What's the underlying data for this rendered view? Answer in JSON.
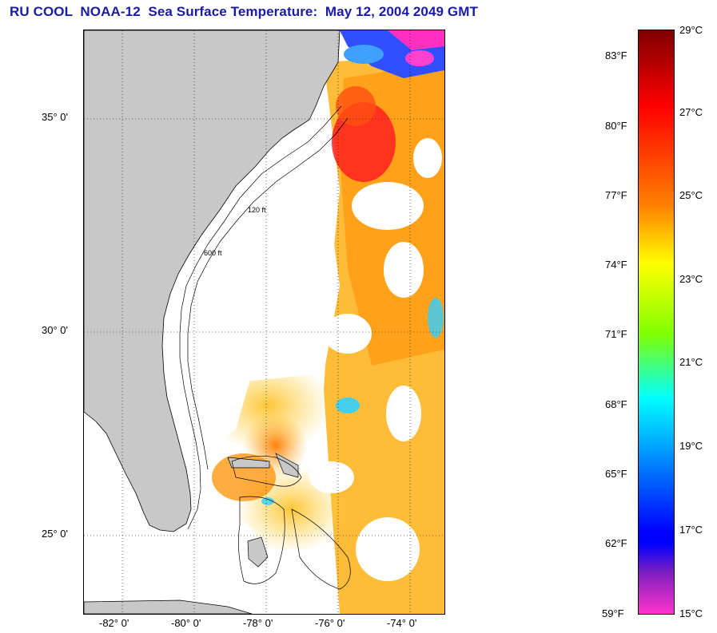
{
  "title": "RU COOL  NOAA-12  Sea Surface Temperature:  May 12, 2004 2049 GMT",
  "map": {
    "lat_labels": [
      "35° 0'",
      "30° 0'",
      "25° 0'"
    ],
    "lon_labels": [
      "-82° 0'",
      "-80° 0'",
      "-78° 0'",
      "-76° 0'",
      "-74° 0'"
    ],
    "isobath_labels": [
      "120 ft",
      "600 ft"
    ]
  },
  "colorbar": {
    "fahrenheit_labels": [
      "83°F",
      "80°F",
      "77°F",
      "74°F",
      "71°F",
      "68°F",
      "65°F",
      "62°F",
      "59°F"
    ],
    "celsius_labels": [
      "29°C",
      "27°C",
      "25°C",
      "23°C",
      "21°C",
      "19°C",
      "17°C",
      "15°C"
    ],
    "colors": {
      "top": "#7f0000",
      "red": "#ff0000",
      "orange": "#ff8000",
      "yellow": "#ffff00",
      "green": "#80ff00",
      "cyan": "#00ffff",
      "blue": "#0000ff",
      "purple": "#8020c0",
      "magenta": "#ff33cc"
    }
  },
  "colors": {
    "land": "#c8c8c8",
    "title": "#1a1aaa"
  }
}
